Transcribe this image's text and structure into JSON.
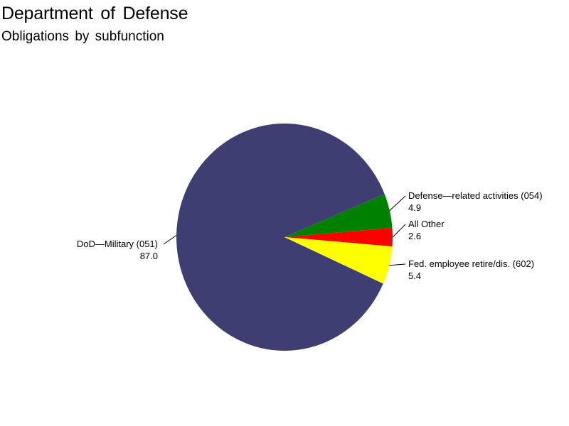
{
  "chart_data": {
    "type": "pie",
    "title": "Department of Defense",
    "subtitle": "Obligations by subfunction",
    "slices": [
      {
        "label": "DoD—Military (051)",
        "value": 87.0,
        "value_label": "87.0",
        "color": "#3e3e72"
      },
      {
        "label": "Defense—related activities (054)",
        "value": 4.9,
        "value_label": "4.9",
        "color": "#008000"
      },
      {
        "label": "All Other",
        "value": 2.6,
        "value_label": "2.6",
        "color": "#ff0000"
      },
      {
        "label": "Fed. employee retire/dis. (602)",
        "value": 5.4,
        "value_label": "5.4",
        "color": "#ffff00"
      }
    ]
  }
}
